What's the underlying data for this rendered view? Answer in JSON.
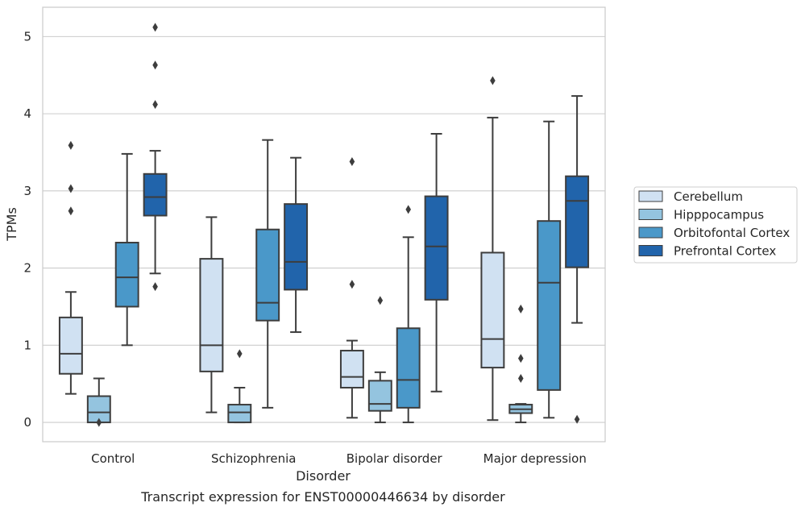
{
  "chart_data": {
    "type": "box",
    "title": "",
    "caption": "Transcript expression for ENST00000446634 by disorder",
    "xlabel": "Disorder",
    "ylabel": "TPMs",
    "ylim": [
      -0.25,
      5.38
    ],
    "yticks": [
      0,
      1,
      2,
      3,
      4,
      5
    ],
    "grid": true,
    "legend_position": "right",
    "categories": [
      "Control",
      "Schizophrenia",
      "Bipolar disorder",
      "Major depression"
    ],
    "series": [
      {
        "name": "Cerebellum",
        "color": "#d0e1f2",
        "boxes": [
          {
            "whislo": 0.37,
            "q1": 0.63,
            "med": 0.89,
            "q3": 1.36,
            "whishi": 1.69,
            "fliers": [
              2.74,
              3.03,
              3.59
            ]
          },
          {
            "whislo": 0.13,
            "q1": 0.66,
            "med": 1.0,
            "q3": 2.12,
            "whishi": 2.66,
            "fliers": []
          },
          {
            "whislo": 0.06,
            "q1": 0.45,
            "med": 0.59,
            "q3": 0.93,
            "whishi": 1.06,
            "fliers": [
              1.79,
              3.38
            ]
          },
          {
            "whislo": 0.03,
            "q1": 0.71,
            "med": 1.08,
            "q3": 2.2,
            "whishi": 3.95,
            "fliers": [
              4.43
            ]
          }
        ]
      },
      {
        "name": "Hipppocampus",
        "color": "#94c4df",
        "boxes": [
          {
            "whislo": 0.0,
            "q1": 0.0,
            "med": 0.13,
            "q3": 0.34,
            "whishi": 0.57,
            "fliers": [
              0.0
            ]
          },
          {
            "whislo": 0.0,
            "q1": 0.0,
            "med": 0.13,
            "q3": 0.23,
            "whishi": 0.45,
            "fliers": [
              0.89
            ]
          },
          {
            "whislo": 0.0,
            "q1": 0.15,
            "med": 0.24,
            "q3": 0.54,
            "whishi": 0.65,
            "fliers": [
              1.58
            ]
          },
          {
            "whislo": 0.0,
            "q1": 0.12,
            "med": 0.17,
            "q3": 0.23,
            "whishi": 0.24,
            "fliers": [
              0.57,
              0.83,
              1.47
            ]
          }
        ]
      },
      {
        "name": "Orbitofontal Cortex",
        "color": "#4a98c9",
        "boxes": [
          {
            "whislo": 1.0,
            "q1": 1.5,
            "med": 1.88,
            "q3": 2.33,
            "whishi": 3.48,
            "fliers": []
          },
          {
            "whislo": 0.19,
            "q1": 1.32,
            "med": 1.55,
            "q3": 2.5,
            "whishi": 3.66,
            "fliers": []
          },
          {
            "whislo": 0.0,
            "q1": 0.19,
            "med": 0.55,
            "q3": 1.22,
            "whishi": 2.4,
            "fliers": [
              2.76
            ]
          },
          {
            "whislo": 0.06,
            "q1": 0.42,
            "med": 1.81,
            "q3": 2.61,
            "whishi": 3.9,
            "fliers": []
          }
        ]
      },
      {
        "name": "Prefrontal Cortex",
        "color": "#2164ab",
        "boxes": [
          {
            "whislo": 1.93,
            "q1": 2.68,
            "med": 2.92,
            "q3": 3.22,
            "whishi": 3.52,
            "fliers": [
              1.76,
              4.12,
              4.63,
              5.12
            ]
          },
          {
            "whislo": 1.17,
            "q1": 1.72,
            "med": 2.08,
            "q3": 2.83,
            "whishi": 3.43,
            "fliers": []
          },
          {
            "whislo": 0.4,
            "q1": 1.59,
            "med": 2.28,
            "q3": 2.93,
            "whishi": 3.74,
            "fliers": []
          },
          {
            "whislo": 1.29,
            "q1": 2.01,
            "med": 2.87,
            "q3": 3.19,
            "whishi": 4.23,
            "fliers": [
              0.04
            ]
          }
        ]
      }
    ]
  }
}
